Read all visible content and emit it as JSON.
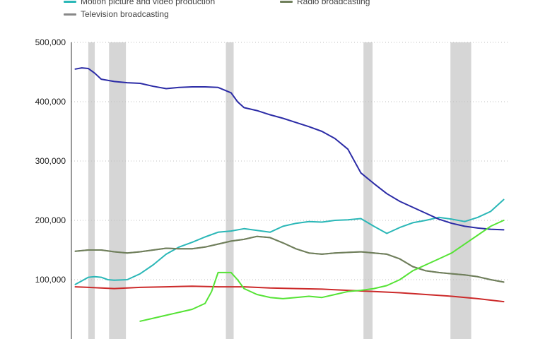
{
  "chart_data": {
    "type": "line",
    "title": "",
    "xlabel": "",
    "ylabel": "",
    "ylim": [
      0,
      500000
    ],
    "yticks": [
      100000,
      200000,
      300000,
      400000,
      500000
    ],
    "ytick_labels": [
      "100,000",
      "200,000",
      "300,000",
      "400,000",
      "500,000"
    ],
    "grid": "horizontal dotted",
    "legend_position": "top",
    "recession_bands": [
      [
        1980.0,
        1980.5
      ],
      [
        1981.6,
        1982.9
      ],
      [
        1990.6,
        1991.2
      ],
      [
        2001.2,
        2001.9
      ],
      [
        2007.9,
        2009.5
      ]
    ],
    "series": [
      {
        "name": "Motion picture and video production",
        "color": "#2ab7b7",
        "x": [
          1979,
          1979.5,
          1980,
          1980.5,
          1981,
          1981.5,
          1982,
          1983,
          1984,
          1985,
          1986,
          1987,
          1988,
          1989,
          1990,
          1991,
          1992,
          1993,
          1994,
          1995,
          1996,
          1997,
          1998,
          1999,
          2000,
          2001,
          2002,
          2003,
          2004,
          2005,
          2006,
          2007,
          2008,
          2009,
          2010,
          2011,
          2012
        ],
        "values": [
          92000,
          98000,
          104000,
          105000,
          104000,
          100000,
          99000,
          100000,
          110000,
          125000,
          143000,
          155000,
          163000,
          172000,
          180000,
          182000,
          186000,
          183000,
          180000,
          190000,
          195000,
          198000,
          197000,
          200000,
          201000,
          203000,
          190000,
          178000,
          188000,
          196000,
          200000,
          205000,
          202000,
          198000,
          205000,
          215000,
          235000
        ]
      },
      {
        "name": "Television broadcasting",
        "color": "#888888",
        "x": [
          1979,
          1980,
          1981,
          1982,
          1983,
          1984,
          1985,
          1986,
          1987,
          1988,
          1989,
          1990,
          1991,
          1992,
          1993,
          1994,
          1995,
          1996,
          1997,
          1998,
          1999,
          2000,
          2001,
          2002,
          2003,
          2004,
          2005,
          2006,
          2007,
          2008,
          2009,
          2010,
          2011,
          2012
        ],
        "values": [
          148000,
          150000,
          150000,
          147000,
          145000,
          147000,
          150000,
          153000,
          152000,
          152000,
          155000,
          160000,
          165000,
          168000,
          173000,
          171000,
          162000,
          152000,
          145000,
          143000,
          145000,
          146000,
          147000,
          145000,
          143000,
          135000,
          122000,
          115000,
          112000,
          110000,
          108000,
          105000,
          100000,
          96000
        ]
      },
      {
        "name": "Radio broadcasting",
        "color": "#6f7f5a",
        "x": [
          1979,
          1980,
          1981,
          1982,
          1983,
          1984,
          1985,
          1986,
          1987,
          1988,
          1989,
          1990,
          1991,
          1992,
          1993,
          1994,
          1995,
          1996,
          1997,
          1998,
          1999,
          2000,
          2001,
          2002,
          2003,
          2004,
          2005,
          2006,
          2007,
          2008,
          2009,
          2010,
          2011,
          2012
        ],
        "values": [
          148000,
          150000,
          150000,
          147000,
          145000,
          147000,
          150000,
          153000,
          152000,
          152000,
          155000,
          160000,
          165000,
          168000,
          173000,
          171000,
          162000,
          152000,
          145000,
          143000,
          145000,
          146000,
          147000,
          145000,
          143000,
          135000,
          122000,
          115000,
          112000,
          110000,
          108000,
          105000,
          100000,
          96000
        ]
      },
      {
        "name": "",
        "color": "#2b2ba6",
        "x": [
          1979,
          1979.5,
          1980,
          1980.5,
          1981,
          1982,
          1983,
          1984,
          1985,
          1986,
          1987,
          1988,
          1989,
          1990,
          1991,
          1991.5,
          1992,
          1993,
          1994,
          1995,
          1996,
          1997,
          1998,
          1999,
          2000,
          2001,
          2002,
          2003,
          2004,
          2005,
          2006,
          2007,
          2008,
          2009,
          2010,
          2011,
          2012
        ],
        "values": [
          455000,
          457000,
          456000,
          448000,
          438000,
          434000,
          432000,
          431000,
          426000,
          422000,
          424000,
          425000,
          425000,
          424000,
          415000,
          400000,
          390000,
          385000,
          378000,
          372000,
          365000,
          358000,
          350000,
          338000,
          320000,
          280000,
          262000,
          245000,
          232000,
          222000,
          212000,
          202000,
          195000,
          190000,
          187000,
          185000,
          184000
        ]
      },
      {
        "name": "",
        "color": "#cc2a2a",
        "x": [
          1979,
          1980,
          1982,
          1984,
          1986,
          1988,
          1990,
          1992,
          1994,
          1996,
          1998,
          2000,
          2002,
          2004,
          2006,
          2008,
          2010,
          2012
        ],
        "values": [
          88000,
          87000,
          85000,
          87000,
          88000,
          89000,
          88000,
          88000,
          86000,
          85000,
          84000,
          82000,
          80000,
          78000,
          75000,
          72000,
          68000,
          63000
        ]
      },
      {
        "name": "",
        "color": "#55e335",
        "x": [
          1984,
          1985,
          1986,
          1987,
          1988,
          1989,
          1989.5,
          1990,
          1991,
          1991.5,
          1992,
          1993,
          1994,
          1995,
          1996,
          1997,
          1998,
          1999,
          2000,
          2001,
          2002,
          2003,
          2004,
          2005,
          2006,
          2007,
          2008,
          2009,
          2010,
          2011,
          2012
        ],
        "values": [
          30000,
          35000,
          40000,
          45000,
          50000,
          60000,
          80000,
          112000,
          112000,
          100000,
          85000,
          75000,
          70000,
          68000,
          70000,
          72000,
          70000,
          75000,
          80000,
          82000,
          85000,
          90000,
          100000,
          115000,
          125000,
          135000,
          145000,
          160000,
          175000,
          190000,
          200000
        ]
      }
    ]
  }
}
